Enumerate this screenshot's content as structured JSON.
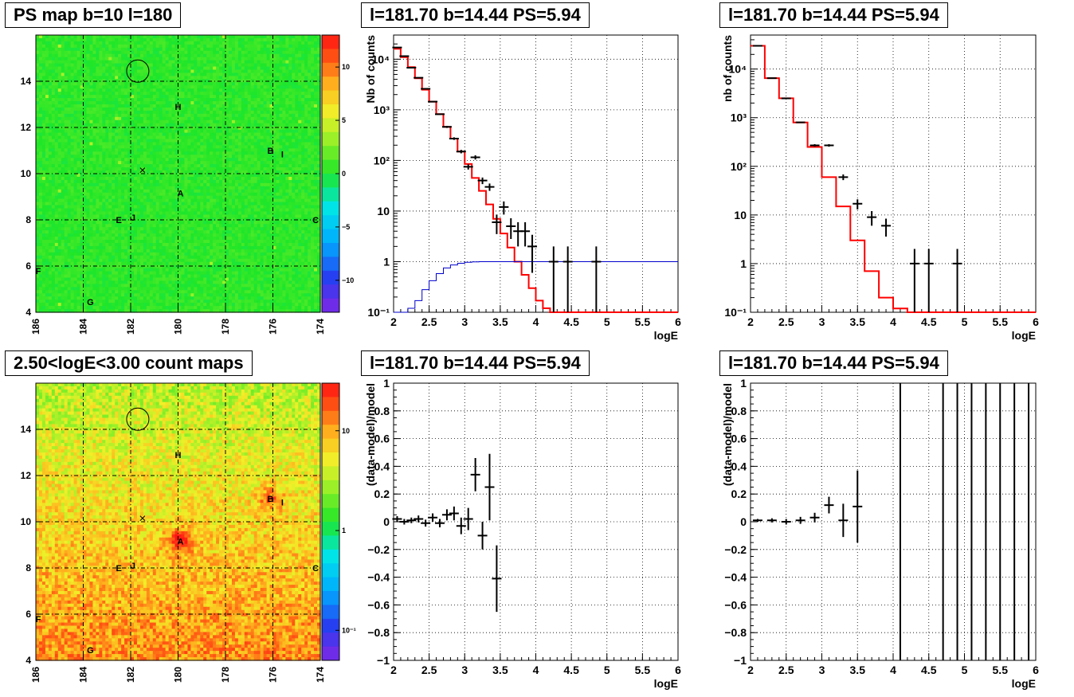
{
  "titles": {
    "ps_map": "PS map b=10 l=180",
    "spec_tm": "l=181.70 b=14.44 PS=5.94",
    "spec_tr": "l=181.70 b=14.44 PS=5.94",
    "count_map": "2.50<logE<3.00 count maps",
    "resid_bm": "l=181.70 b=14.44 PS=5.94",
    "resid_br": "l=181.70 b=14.44 PS=5.94"
  },
  "maps": {
    "x_ticks": [
      "186",
      "184",
      "182",
      "180",
      "178",
      "176",
      "174"
    ],
    "y_ticks": [
      "4",
      "6",
      "8",
      "10",
      "12",
      "14"
    ],
    "xlim": [
      186,
      174
    ],
    "ylim": [
      4,
      16
    ],
    "sources": [
      {
        "label": "A",
        "l": 179.9,
        "b": 9.15
      },
      {
        "label": "B",
        "l": 176.1,
        "b": 11.0
      },
      {
        "label": "I",
        "l": 175.6,
        "b": 10.85
      },
      {
        "label": "C",
        "l": 174.2,
        "b": 8.0
      },
      {
        "label": "E",
        "l": 182.5,
        "b": 8.0
      },
      {
        "label": "J",
        "l": 181.9,
        "b": 8.1
      },
      {
        "label": "F",
        "l": 185.9,
        "b": 5.8
      },
      {
        "label": "G",
        "l": 183.7,
        "b": 4.45
      },
      {
        "label": "H",
        "l": 180.0,
        "b": 12.9
      }
    ],
    "circle": {
      "l": 181.7,
      "b": 14.44
    },
    "cross": {
      "l": 181.5,
      "b": 10.15
    },
    "ps_palette": {
      "zlim": [
        -13,
        13
      ],
      "ticks": [
        {
          "v": 10,
          "t": "10"
        },
        {
          "v": 5,
          "t": "5"
        },
        {
          "v": 0,
          "t": "0"
        },
        {
          "v": -5,
          "t": "−5"
        },
        {
          "v": -10,
          "t": "−10"
        }
      ]
    },
    "count_palette": {
      "zlim": [
        0.05,
        30
      ],
      "log": true,
      "ticks": [
        {
          "v": 10,
          "t": "10"
        },
        {
          "v": 1,
          "t": "1"
        },
        {
          "v": 0.1,
          "t": "10⁻¹"
        }
      ]
    }
  },
  "chart_data": [
    {
      "type": "heatmap",
      "title": "PS map b=10 l=180",
      "xlim": [
        186,
        174
      ],
      "ylim": [
        4,
        16
      ],
      "zlim": [
        -13,
        13
      ],
      "note_values": "mostly 0 to 2 across the map"
    },
    {
      "type": "line",
      "title": "l=181.70 b=14.44 PS=5.94",
      "xlabel": "logE",
      "ylabel": "Nb of counts",
      "xlim": [
        2,
        6
      ],
      "ylim": [
        0.1,
        30000
      ],
      "yscale": "log",
      "grid": true,
      "series": [
        {
          "role": "model",
          "color": "#ff0000",
          "bin_edges": [
            2,
            2.1,
            2.2,
            2.3,
            2.4,
            2.5,
            2.6,
            2.7,
            2.8,
            2.9,
            3.0,
            3.1,
            3.2,
            3.3,
            3.4,
            3.5,
            3.6,
            3.7,
            3.8,
            3.9,
            4.0,
            4.1,
            4.2,
            6.0
          ],
          "values": [
            16000,
            11000,
            7000,
            4200,
            2500,
            1450,
            820,
            460,
            270,
            150,
            85,
            45,
            25,
            13.5,
            7,
            3.6,
            1.9,
            1.0,
            0.55,
            0.3,
            0.17,
            0.12,
            0.1
          ]
        },
        {
          "role": "exposure",
          "color": "#0000cc",
          "bin_edges": [
            2,
            2.1,
            2.2,
            2.3,
            2.4,
            2.5,
            2.6,
            2.7,
            2.8,
            2.9,
            3.0,
            3.1,
            3.2,
            6.0
          ],
          "values": [
            0.1,
            0.1,
            0.12,
            0.17,
            0.28,
            0.42,
            0.58,
            0.75,
            0.86,
            0.93,
            0.97,
            0.99,
            1.0
          ]
        },
        {
          "role": "data",
          "color": "#000000",
          "points": [
            [
              2.05,
              17000,
              130
            ],
            [
              2.15,
              11500,
              110
            ],
            [
              2.25,
              6800,
              85
            ],
            [
              2.35,
              4300,
              65
            ],
            [
              2.45,
              2600,
              50
            ],
            [
              2.55,
              1450,
              38
            ],
            [
              2.65,
              820,
              29
            ],
            [
              2.75,
              460,
              21
            ],
            [
              2.85,
              270,
              16
            ],
            [
              2.95,
              150,
              12
            ],
            [
              3.05,
              75,
              9
            ],
            [
              3.15,
              115,
              11
            ],
            [
              3.25,
              40,
              6
            ],
            [
              3.35,
              30,
              5
            ],
            [
              3.45,
              6,
              2.5
            ],
            [
              3.55,
              12,
              3.5
            ],
            [
              3.65,
              5,
              2.2
            ],
            [
              3.75,
              4,
              2
            ],
            [
              3.85,
              4,
              2
            ],
            [
              3.95,
              2,
              1.4
            ],
            [
              4.25,
              1,
              1
            ],
            [
              4.45,
              1,
              1
            ],
            [
              4.85,
              1,
              1
            ]
          ]
        }
      ]
    },
    {
      "type": "line",
      "title": "l=181.70 b=14.44 PS=5.94",
      "xlabel": "logE",
      "ylabel": "nb of counts",
      "xlim": [
        2,
        6
      ],
      "ylim": [
        0.1,
        50000
      ],
      "yscale": "log",
      "grid": true,
      "series": [
        {
          "role": "model",
          "color": "#ff0000",
          "bin_edges": [
            2,
            2.2,
            2.4,
            2.6,
            2.8,
            3.0,
            3.2,
            3.4,
            3.6,
            3.8,
            4.0,
            4.2,
            6.0
          ],
          "values": [
            30000,
            6500,
            2500,
            800,
            250,
            60,
            15,
            3,
            0.7,
            0.2,
            0.12,
            0.1
          ]
        },
        {
          "role": "data",
          "color": "#000000",
          "points": [
            [
              2.1,
              30000,
              170
            ],
            [
              2.3,
              6500,
              80
            ],
            [
              2.5,
              2500,
              50
            ],
            [
              2.7,
              800,
              28
            ],
            [
              2.9,
              270,
              16
            ],
            [
              3.1,
              270,
              16
            ],
            [
              3.3,
              60,
              8
            ],
            [
              3.5,
              17,
              4
            ],
            [
              3.7,
              9,
              3
            ],
            [
              3.9,
              6,
              2.4
            ],
            [
              4.3,
              1,
              1
            ],
            [
              4.5,
              1,
              1
            ],
            [
              4.9,
              1,
              1
            ]
          ]
        }
      ]
    },
    {
      "type": "heatmap",
      "title": "2.50<logE<3.00 count maps",
      "xlim": [
        186,
        174
      ],
      "ylim": [
        4,
        16
      ],
      "zlim": [
        0.05,
        30
      ],
      "zscale": "log",
      "note_values": "counts rise toward low b; hot spots near A and B"
    },
    {
      "type": "scatter",
      "title": "l=181.70 b=14.44 PS=5.94",
      "xlabel": "logE",
      "ylabel": "(data-model)/model",
      "xlim": [
        2,
        6
      ],
      "ylim": [
        -1,
        1
      ],
      "grid": true,
      "points": [
        [
          2.05,
          0.02,
          0.02
        ],
        [
          2.15,
          0.0,
          0.02
        ],
        [
          2.25,
          0.01,
          0.02
        ],
        [
          2.35,
          0.02,
          0.025
        ],
        [
          2.45,
          -0.01,
          0.025
        ],
        [
          2.55,
          0.03,
          0.03
        ],
        [
          2.65,
          -0.01,
          0.03
        ],
        [
          2.75,
          0.05,
          0.04
        ],
        [
          2.85,
          0.06,
          0.05
        ],
        [
          2.95,
          -0.03,
          0.06
        ],
        [
          3.05,
          0.02,
          0.08
        ],
        [
          3.15,
          0.34,
          0.12
        ],
        [
          3.25,
          -0.1,
          0.1
        ],
        [
          3.35,
          0.25,
          0.24
        ],
        [
          3.45,
          -0.41,
          0.24
        ]
      ]
    },
    {
      "type": "scatter",
      "title": "l=181.70 b=14.44 PS=5.94",
      "xlabel": "logE",
      "ylabel": "(data-model)/model",
      "xlim": [
        2,
        6
      ],
      "ylim": [
        -1,
        1
      ],
      "grid": true,
      "points": [
        [
          2.1,
          0.01,
          0.01
        ],
        [
          2.3,
          0.01,
          0.015
        ],
        [
          2.5,
          0.0,
          0.02
        ],
        [
          2.7,
          0.01,
          0.025
        ],
        [
          2.9,
          0.03,
          0.035
        ],
        [
          3.1,
          0.12,
          0.06
        ],
        [
          3.3,
          0.01,
          0.12
        ],
        [
          3.5,
          0.11,
          0.26
        ]
      ],
      "full_range_bars_x": [
        4.1,
        4.7,
        4.9,
        5.1,
        5.3,
        5.5,
        5.7,
        5.9
      ]
    }
  ],
  "axes": {
    "xlabel": "logE",
    "ylabel_tm": "Nb of counts",
    "ylabel_tr": "nb of counts",
    "ylabel_res": "(data-model)/model",
    "x_ticks": [
      "2",
      "2.5",
      "3",
      "3.5",
      "4",
      "4.5",
      "5",
      "5.5",
      "6"
    ],
    "log_ticks": [
      {
        "v": 10000,
        "t": "10⁴"
      },
      {
        "v": 1000,
        "t": "10³"
      },
      {
        "v": 100,
        "t": "10²"
      },
      {
        "v": 10,
        "t": "10"
      },
      {
        "v": 1,
        "t": "1"
      },
      {
        "v": 0.1,
        "t": "10⁻¹"
      }
    ],
    "res_ticks": [
      {
        "v": 1,
        "t": "1"
      },
      {
        "v": 0.8,
        "t": "0.8"
      },
      {
        "v": 0.6,
        "t": "0.6"
      },
      {
        "v": 0.4,
        "t": "0.4"
      },
      {
        "v": 0.2,
        "t": "0.2"
      },
      {
        "v": 0,
        "t": "0"
      },
      {
        "v": -0.2,
        "t": "−0.2"
      },
      {
        "v": -0.4,
        "t": "−0.4"
      },
      {
        "v": -0.6,
        "t": "−0.6"
      },
      {
        "v": -0.8,
        "t": "−0.8"
      },
      {
        "v": -1,
        "t": "−1"
      }
    ]
  }
}
